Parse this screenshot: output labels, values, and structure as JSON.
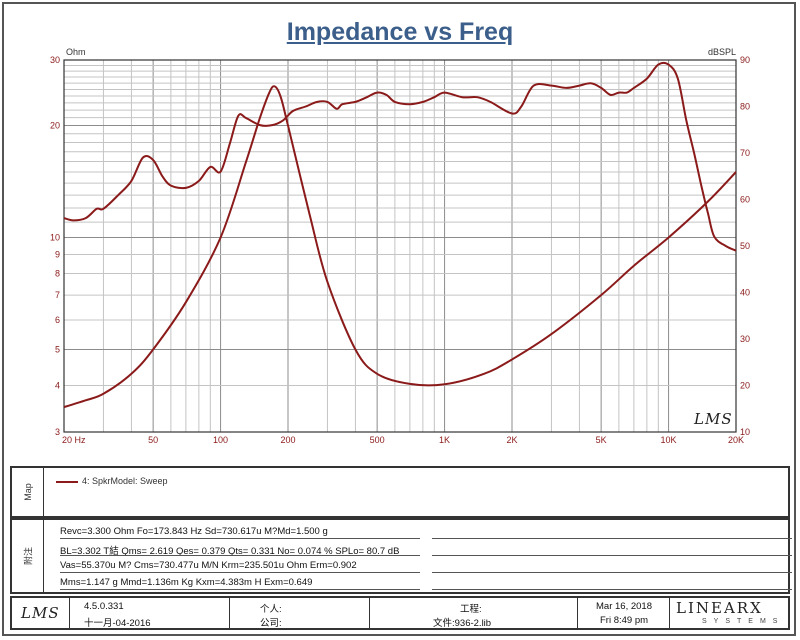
{
  "chart_data": {
    "type": "line",
    "title": "Impedance vs Freq",
    "left_axis": {
      "unit": "Ohm",
      "scale": "log",
      "range": [
        3,
        30
      ],
      "ticks": [
        {
          "value": 30,
          "label": "30"
        },
        {
          "value": 20,
          "label": "20"
        },
        {
          "value": 10,
          "label": "10"
        },
        {
          "value": 9,
          "label": "9"
        },
        {
          "value": 8,
          "label": "8"
        },
        {
          "value": 7,
          "label": "7"
        },
        {
          "value": 6,
          "label": "6"
        },
        {
          "value": 5,
          "label": "5"
        },
        {
          "value": 4,
          "label": "4"
        },
        {
          "value": 3,
          "label": "3"
        }
      ]
    },
    "right_axis": {
      "unit": "dBSPL",
      "scale": "linear",
      "range": [
        10,
        90
      ],
      "ticks": [
        {
          "value": 90,
          "label": "90"
        },
        {
          "value": 80,
          "label": "80"
        },
        {
          "value": 70,
          "label": "70"
        },
        {
          "value": 60,
          "label": "60"
        },
        {
          "value": 50,
          "label": "50"
        },
        {
          "value": 40,
          "label": "40"
        },
        {
          "value": 30,
          "label": "30"
        },
        {
          "value": 20,
          "label": "20"
        },
        {
          "value": 10,
          "label": "10"
        }
      ]
    },
    "x_axis": {
      "scale": "log",
      "range": [
        20,
        20000
      ],
      "ticks": [
        {
          "value": 20,
          "label": "20  Hz"
        },
        {
          "value": 50,
          "label": "50"
        },
        {
          "value": 100,
          "label": "100"
        },
        {
          "value": 200,
          "label": "200"
        },
        {
          "value": 500,
          "label": "500"
        },
        {
          "value": 1000,
          "label": "1K"
        },
        {
          "value": 2000,
          "label": "2K"
        },
        {
          "value": 5000,
          "label": "5K"
        },
        {
          "value": 10000,
          "label": "10K"
        },
        {
          "value": 20000,
          "label": "20K"
        }
      ]
    },
    "grid": true,
    "series": [
      {
        "name": "Impedance",
        "axis": "left",
        "color": "#8b1a1a",
        "x": [
          20,
          25,
          30,
          40,
          50,
          70,
          100,
          130,
          150,
          165,
          174,
          185,
          200,
          250,
          300,
          400,
          500,
          700,
          1000,
          1500,
          2000,
          3000,
          5000,
          7000,
          10000,
          15000,
          20000
        ],
        "y": [
          3.5,
          3.65,
          3.8,
          4.3,
          5.0,
          6.7,
          10.0,
          16.0,
          21.0,
          24.5,
          25.5,
          24.0,
          20.0,
          11.5,
          7.6,
          5.0,
          4.3,
          4.04,
          4.03,
          4.3,
          4.7,
          5.5,
          7.0,
          8.4,
          10.0,
          12.5,
          15.0
        ]
      },
      {
        "name": "SPL",
        "axis": "right",
        "color": "#8b1a1a",
        "x": [
          20,
          22,
          25,
          28,
          30,
          35,
          40,
          45,
          50,
          55,
          60,
          70,
          80,
          90,
          100,
          110,
          120,
          130,
          150,
          170,
          190,
          210,
          240,
          270,
          300,
          330,
          350,
          400,
          450,
          500,
          550,
          600,
          700,
          800,
          900,
          1000,
          1200,
          1400,
          1600,
          2000,
          2200,
          2500,
          3000,
          3500,
          4000,
          4500,
          5000,
          5500,
          6000,
          6500,
          7000,
          8000,
          9000,
          10000,
          11000,
          12000,
          13000,
          14000,
          15000,
          16000,
          18000,
          20000
        ],
        "y": [
          56,
          55.5,
          56,
          58,
          58,
          61,
          64,
          69,
          68.5,
          65,
          63,
          62.5,
          64,
          67,
          66,
          72,
          78,
          77.5,
          76,
          76,
          77,
          79,
          80,
          81,
          81,
          79.5,
          80.5,
          81,
          82,
          83,
          82.5,
          81,
          80.5,
          81,
          82,
          83,
          82,
          82,
          81,
          78.5,
          80,
          84.5,
          84.5,
          84,
          84.5,
          85,
          84,
          82.5,
          83,
          83,
          84,
          86,
          89,
          89,
          86,
          77,
          70,
          63,
          57,
          52,
          50,
          49
        ]
      }
    ]
  },
  "header": {
    "title": "Impedance vs Freq",
    "left_unit": "Ohm",
    "right_unit": "dBSPL"
  },
  "watermark": "LMS",
  "legend_panel": {
    "side_label": "Map",
    "entry": "4: SpkrModel: Sweep",
    "line_color": "#8b1a1a"
  },
  "params_panel": {
    "side_label": "附注",
    "rows": [
      "Revc=3.300 Ohm  Fo=173.843 Hz  Sd=730.617u M?Md=1.500 g",
      "BL=3.302 T結  Qms= 2.619  Qes= 0.379  Qts= 0.331  No= 0.074 %  SPLo= 80.7 dB",
      "Vas=55.370u M? Cms=730.477u M/N  Krm=235.501u Ohm  Erm=0.902",
      "Mms=1.147 g  Mmd=1.136m Kg  Kxm=4.383m H  Exm=0.649"
    ]
  },
  "footer": {
    "logo": "LMS",
    "version": "4.5.0.331",
    "build_date": "十一月-04-2016",
    "person_label": "个人:",
    "company_label": "公司:",
    "project_label": "工程:",
    "file_label": "文件:936-2.lib",
    "date": "Mar 16, 2018",
    "time": "Fri  8:49 pm",
    "brand": "LINEARX",
    "brand_sub": "SYSTEMS"
  }
}
